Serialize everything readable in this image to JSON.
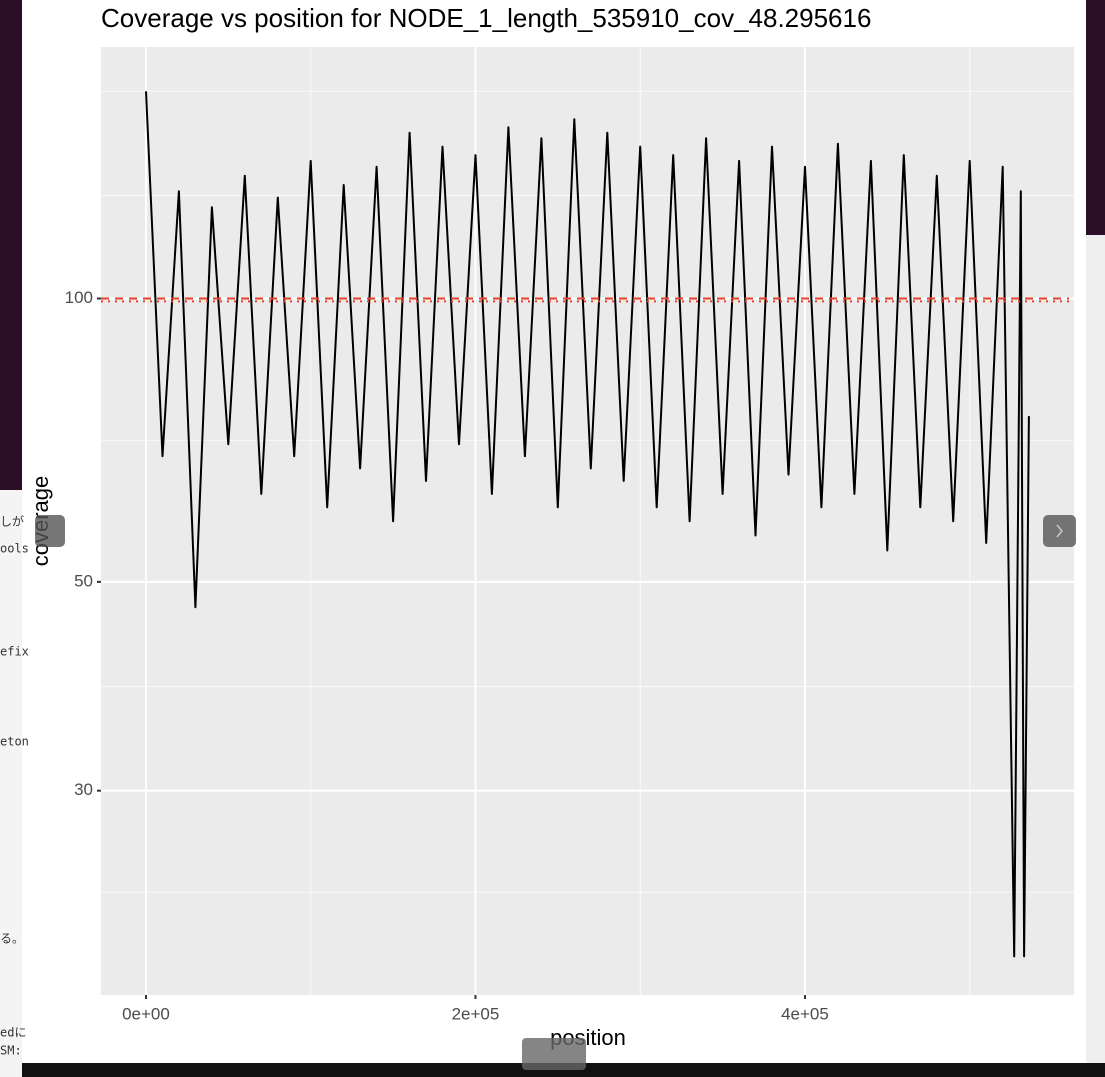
{
  "chart_data": {
    "type": "line",
    "title": "Coverage vs position for NODE_1_length_535910_cov_48.295616",
    "x_label": "position",
    "y_label": "coverage",
    "x": [
      0,
      10000,
      20000,
      30000,
      40000,
      50000,
      60000,
      70000,
      80000,
      90000,
      100000,
      110000,
      120000,
      130000,
      140000,
      150000,
      160000,
      170000,
      180000,
      190000,
      200000,
      210000,
      220000,
      230000,
      240000,
      250000,
      260000,
      270000,
      280000,
      290000,
      300000,
      310000,
      320000,
      330000,
      340000,
      350000,
      360000,
      370000,
      380000,
      390000,
      400000,
      410000,
      420000,
      430000,
      440000,
      450000,
      460000,
      470000,
      480000,
      490000,
      500000,
      510000,
      520000,
      527000,
      531000,
      533000,
      535910
    ],
    "values": [
      166,
      68,
      130,
      47,
      125,
      70,
      135,
      62,
      128,
      68,
      140,
      60,
      132,
      66,
      138,
      58,
      150,
      64,
      145,
      70,
      142,
      62,
      152,
      68,
      148,
      60,
      155,
      66,
      150,
      64,
      145,
      60,
      142,
      58,
      148,
      62,
      140,
      56,
      145,
      65,
      138,
      60,
      146,
      62,
      140,
      54,
      142,
      60,
      135,
      58,
      140,
      55,
      138,
      20,
      130,
      20,
      75
    ],
    "color": "#000000",
    "xlim": [
      -27300,
      563300
    ],
    "ylim": [
      18.2,
      185
    ],
    "y_log_scale": true,
    "xticks": [
      {
        "value": 0,
        "label": "0e+00"
      },
      {
        "value": 200000,
        "label": "2e+05"
      },
      {
        "value": 400000,
        "label": "4e+05"
      }
    ],
    "yticks": [
      30,
      50,
      100
    ],
    "x_minor_ticks": [
      100000,
      300000,
      500000
    ],
    "y_minor_ticks": [
      23.4,
      38.7,
      70.7,
      128.7,
      166
    ],
    "grid": true,
    "hlines": [
      {
        "value": 100,
        "style": "dashed",
        "color": "#e8442c"
      },
      {
        "value": 99.3,
        "style": "dotted",
        "color": "#e8442c"
      }
    ]
  },
  "background_fragments": [
    "しが",
    "ools",
    "efix",
    "eton",
    "る。",
    "edに",
    "SM:"
  ]
}
